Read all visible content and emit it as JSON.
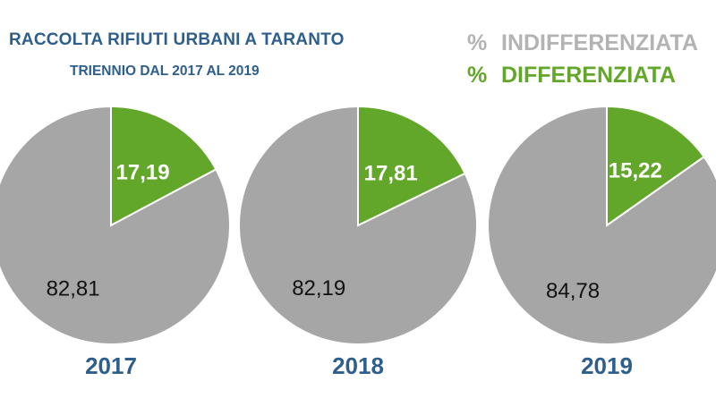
{
  "title": "RACCOLTA RIFIUTI URBANI A TARANTO",
  "subtitle": "TRIENNIO DAL 2017 AL 2019",
  "legend": [
    {
      "symbol": "%",
      "label": "INDIFFERENZIATA",
      "color": "#b3b3b3"
    },
    {
      "symbol": "%",
      "label": "DIFFERENZIATA",
      "color": "#62a72a"
    }
  ],
  "colors": {
    "indifferenziata": "#a6a6a6",
    "differenziata": "#62a72a",
    "slice_text_green": "#ffffff",
    "slice_text_gray": "#111111",
    "title": "#2e5e8c",
    "year": "#2e5e8c"
  },
  "chart_data": [
    {
      "type": "pie",
      "year": "2017",
      "slices": [
        {
          "name": "DIFFERENZIATA",
          "value": 17.19,
          "label": "17,19"
        },
        {
          "name": "INDIFFERENZIATA",
          "value": 82.81,
          "label": "82,81"
        }
      ]
    },
    {
      "type": "pie",
      "year": "2018",
      "slices": [
        {
          "name": "DIFFERENZIATA",
          "value": 17.81,
          "label": "17,81"
        },
        {
          "name": "INDIFFERENZIATA",
          "value": 82.19,
          "label": "82,19"
        }
      ]
    },
    {
      "type": "pie",
      "year": "2019",
      "slices": [
        {
          "name": "DIFFERENZIATA",
          "value": 15.22,
          "label": "15,22"
        },
        {
          "name": "INDIFFERENZIATA",
          "value": 84.78,
          "label": "84,78"
        }
      ]
    }
  ]
}
